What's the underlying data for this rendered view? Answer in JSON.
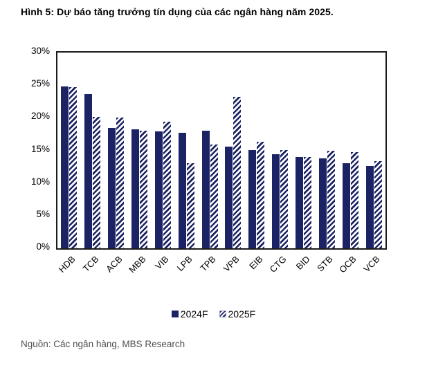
{
  "title": "Hình 5: Dự báo tăng trưởng tín dụng của các ngân hàng năm 2025.",
  "source": "Nguồn: Các ngân hàng, MBS Research",
  "colors": {
    "bar_navy": "#1B2364",
    "axis_border": "#1a1a1a",
    "source_text": "#4D4D4D",
    "background": "#FFFFFF"
  },
  "chart_data": {
    "type": "bar",
    "title": "Hình 5: Dự báo tăng trưởng tín dụng của các ngân hàng năm 2025.",
    "categories": [
      "HDB",
      "TCB",
      "ACB",
      "MBB",
      "VIB",
      "LPB",
      "TPB",
      "VPB",
      "EIB",
      "CTG",
      "BID",
      "STB",
      "OCB",
      "VCB"
    ],
    "series": [
      {
        "name": "2024F",
        "style": "solid",
        "values": [
          24.8,
          23.6,
          18.4,
          18.2,
          17.9,
          17.7,
          18.0,
          15.6,
          15.1,
          14.4,
          14.0,
          13.8,
          13.0,
          12.6
        ]
      },
      {
        "name": "2025F",
        "style": "hatched",
        "values": [
          24.7,
          20.1,
          20.0,
          18.0,
          19.4,
          13.0,
          15.9,
          23.2,
          16.3,
          15.1,
          14.0,
          14.9,
          14.7,
          13.4
        ]
      }
    ],
    "xlabel": "",
    "ylabel": "",
    "ylim": [
      0,
      30
    ],
    "ytick_values": [
      0,
      5,
      10,
      15,
      20,
      25,
      30
    ],
    "ytick_labels": [
      "0%",
      "5%",
      "10%",
      "15%",
      "20%",
      "25%",
      "30%"
    ],
    "grid": false,
    "legend_position": "bottom",
    "source": "Nguồn: Các ngân hàng, MBS Research"
  }
}
